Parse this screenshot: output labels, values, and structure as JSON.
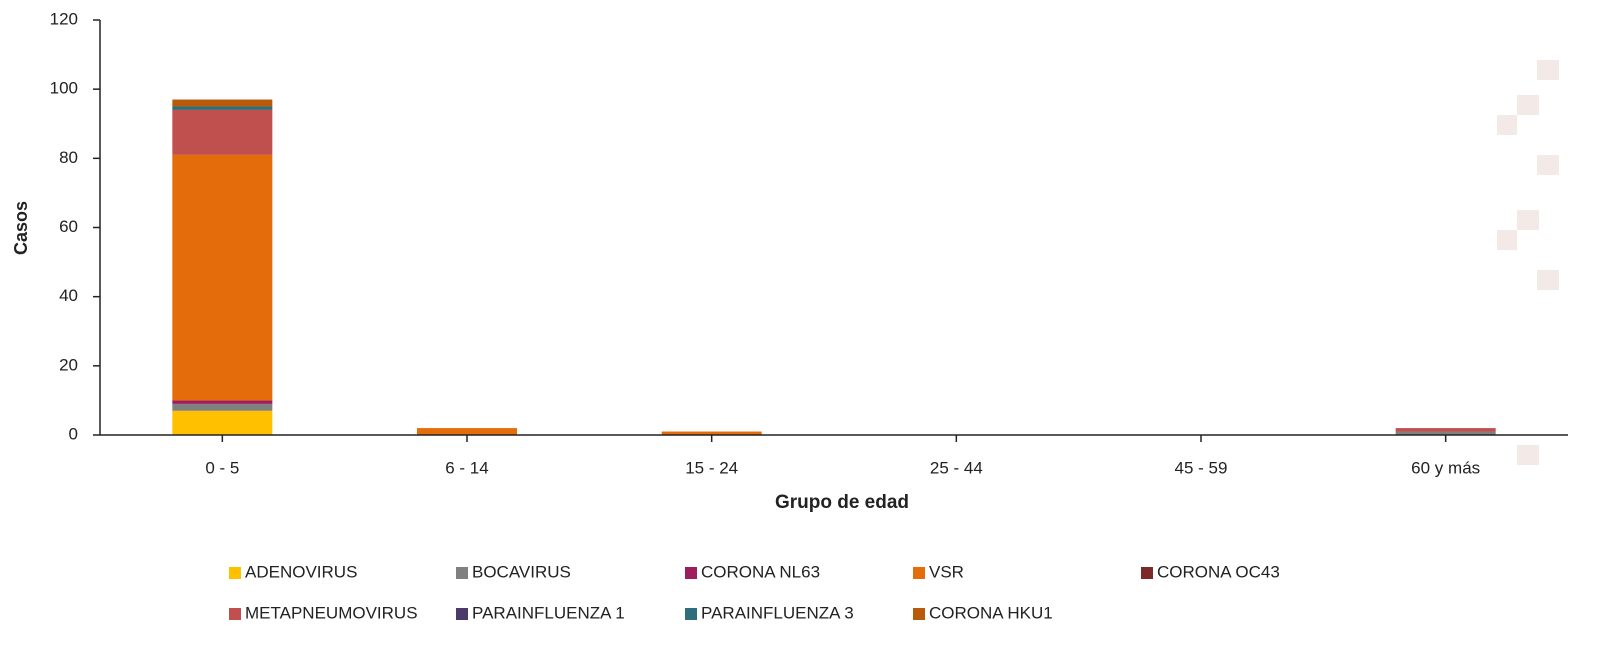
{
  "chart_data": {
    "type": "stacked-bar",
    "x_label": "Grupo de edad",
    "y_label": "Casos",
    "categories": [
      "0 - 5",
      "6 - 14",
      "15 - 24",
      "25 - 44",
      "45 - 59",
      "60 y más"
    ],
    "series": [
      {
        "name": "ADENOVIRUS",
        "color": "#ffc000",
        "values": [
          7,
          0,
          0,
          0,
          0,
          0
        ]
      },
      {
        "name": "BOCAVIRUS",
        "color": "#808080",
        "values": [
          2,
          0,
          0,
          0,
          0,
          1
        ]
      },
      {
        "name": "CORONA NL63",
        "color": "#9e1d5c",
        "values": [
          1,
          0,
          0,
          0,
          0,
          0
        ]
      },
      {
        "name": "VSR",
        "color": "#e46c0a",
        "values": [
          71,
          2,
          1,
          0,
          0,
          0
        ]
      },
      {
        "name": "CORONA OC43",
        "color": "#7b2a2a",
        "values": [
          0,
          0,
          0,
          0,
          0,
          0
        ]
      },
      {
        "name": "METAPNEUMOVIRUS",
        "color": "#c0504d",
        "values": [
          13,
          0,
          0,
          0,
          0,
          1
        ]
      },
      {
        "name": "PARAINFLUENZA 1",
        "color": "#4b3b6b",
        "values": [
          0,
          0,
          0,
          0,
          0,
          0
        ]
      },
      {
        "name": "PARAINFLUENZA 3",
        "color": "#2e6d7c",
        "values": [
          1,
          0,
          0,
          0,
          0,
          0
        ]
      },
      {
        "name": "CORONA HKU1",
        "color": "#b75b0b",
        "values": [
          2,
          0,
          0,
          0,
          0,
          0
        ]
      }
    ],
    "ylim": [
      0,
      120
    ],
    "yticks": [
      0,
      20,
      40,
      60,
      80,
      100,
      120
    ]
  }
}
